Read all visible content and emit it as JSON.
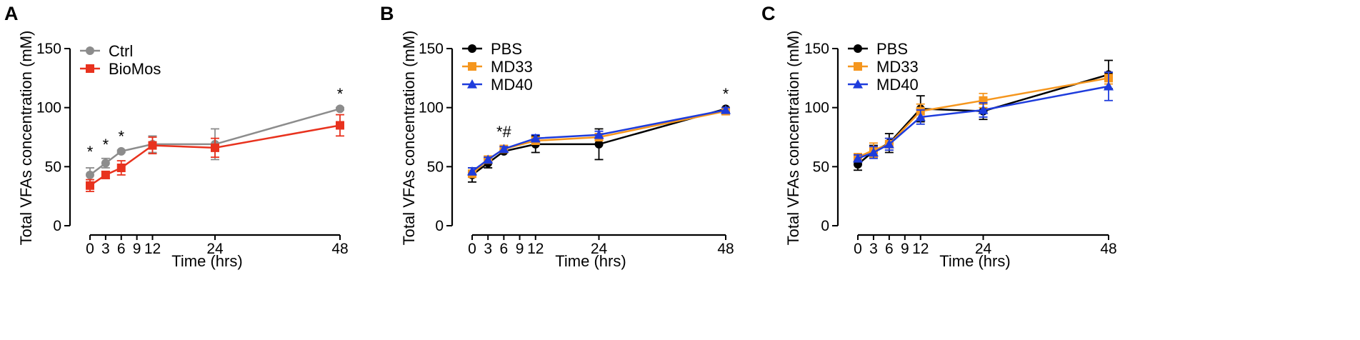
{
  "chart_data": [
    {
      "type": "line",
      "panel_label": "A",
      "xlabel": "Time (hrs)",
      "ylabel": "Total VFAs concentration (mM)",
      "x_ticks": [
        0,
        3,
        6,
        9,
        12,
        24,
        48
      ],
      "ylim": [
        0,
        150
      ],
      "y_ticks": [
        0,
        50,
        100,
        150
      ],
      "legend_position": "top-left",
      "series": [
        {
          "name": "Ctrl",
          "color": "#8c8c8c",
          "marker": "circle",
          "x": [
            0,
            3,
            6,
            12,
            24,
            48
          ],
          "y": [
            43,
            53,
            63,
            69,
            69,
            99
          ],
          "err": [
            6,
            4,
            1,
            7,
            13,
            1
          ]
        },
        {
          "name": "BioMos",
          "color": "#e8321e",
          "marker": "square",
          "x": [
            0,
            3,
            6,
            12,
            24,
            48
          ],
          "y": [
            34,
            43,
            49,
            68,
            66,
            85
          ],
          "err": [
            5,
            3,
            6,
            7,
            8,
            9
          ]
        }
      ],
      "annotations": [
        {
          "text": "*",
          "x": 0,
          "y": 58
        },
        {
          "text": "*",
          "x": 3,
          "y": 64
        },
        {
          "text": "*",
          "x": 6,
          "y": 71
        },
        {
          "text": "*",
          "x": 48,
          "y": 107
        }
      ]
    },
    {
      "type": "line",
      "panel_label": "B",
      "xlabel": "Time (hrs)",
      "ylabel": "Total VFAs concentration (mM)",
      "x_ticks": [
        0,
        3,
        6,
        9,
        12,
        24,
        48
      ],
      "ylim": [
        0,
        150
      ],
      "y_ticks": [
        0,
        50,
        100,
        150
      ],
      "legend_position": "top-left",
      "series": [
        {
          "name": "PBS",
          "color": "#000000",
          "marker": "circle",
          "x": [
            0,
            3,
            6,
            12,
            24,
            48
          ],
          "y": [
            43,
            53,
            63,
            69,
            69,
            99
          ],
          "err": [
            6,
            4,
            1,
            7,
            13,
            1
          ]
        },
        {
          "name": "MD33",
          "color": "#f5961e",
          "marker": "square",
          "x": [
            0,
            3,
            6,
            12,
            24,
            48
          ],
          "y": [
            44,
            56,
            65,
            72,
            75,
            97
          ],
          "err": [
            3,
            2,
            2,
            3,
            3,
            2
          ]
        },
        {
          "name": "MD40",
          "color": "#1e3cdc",
          "marker": "triangle",
          "x": [
            0,
            3,
            6,
            12,
            24,
            48
          ],
          "y": [
            46,
            56,
            65,
            74,
            77,
            98
          ],
          "err": [
            3,
            2,
            2,
            3,
            3,
            2
          ]
        }
      ],
      "annotations": [
        {
          "text": "*#",
          "x": 6,
          "y": 75
        },
        {
          "text": "*",
          "x": 48,
          "y": 107
        }
      ]
    },
    {
      "type": "line",
      "panel_label": "C",
      "xlabel": "Time (hrs)",
      "ylabel": "Total VFAs concentration (mM)",
      "x_ticks": [
        0,
        3,
        6,
        9,
        12,
        24,
        48
      ],
      "ylim": [
        0,
        150
      ],
      "y_ticks": [
        0,
        50,
        100,
        150
      ],
      "legend_position": "top-left",
      "series": [
        {
          "name": "PBS",
          "color": "#000000",
          "marker": "circle",
          "x": [
            0,
            3,
            6,
            12,
            24,
            48
          ],
          "y": [
            52,
            63,
            70,
            99,
            97,
            128
          ],
          "err": [
            5,
            5,
            8,
            11,
            7,
            12
          ]
        },
        {
          "name": "MD33",
          "color": "#f5961e",
          "marker": "square",
          "x": [
            0,
            3,
            6,
            12,
            24,
            48
          ],
          "y": [
            58,
            64,
            69,
            97,
            106,
            125
          ],
          "err": [
            3,
            6,
            5,
            6,
            6,
            5
          ]
        },
        {
          "name": "MD40",
          "color": "#1e3cdc",
          "marker": "triangle",
          "x": [
            0,
            3,
            6,
            12,
            24,
            48
          ],
          "y": [
            57,
            62,
            69,
            92,
            98,
            118
          ],
          "err": [
            3,
            5,
            5,
            6,
            6,
            12
          ]
        }
      ],
      "annotations": []
    }
  ]
}
